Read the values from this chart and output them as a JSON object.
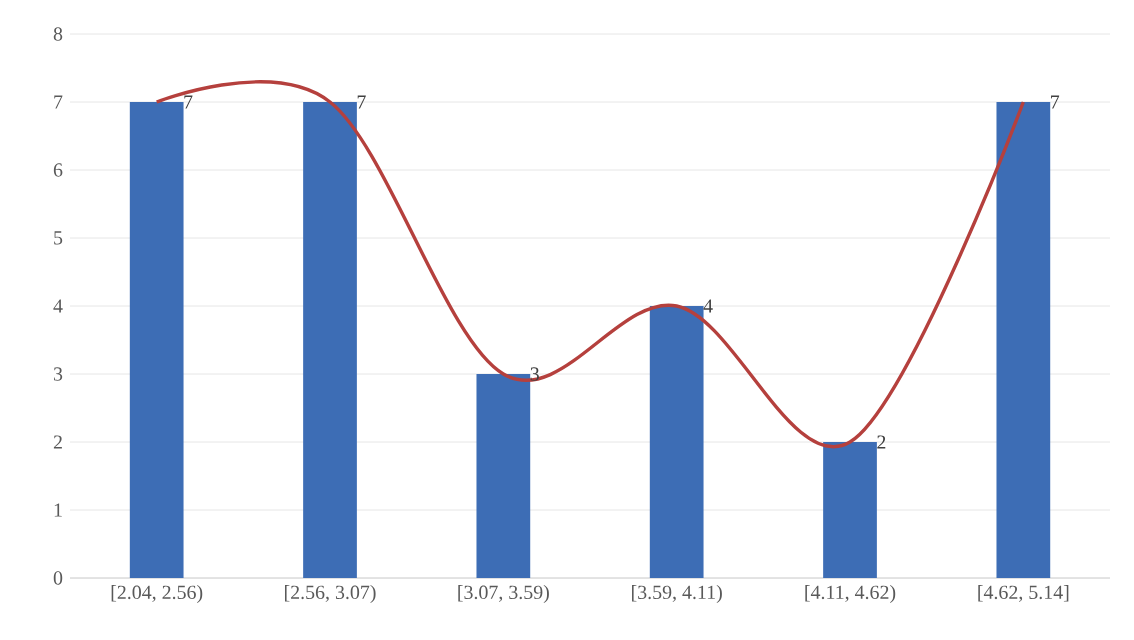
{
  "chart_data": {
    "type": "bar",
    "categories": [
      "[2.04, 2.56)",
      "[2.56, 3.07)",
      "[3.07, 3.59)",
      "[3.59, 4.11)",
      "[4.11, 4.62)",
      "[4.62, 5.14]"
    ],
    "series": [
      {
        "color": "#3d6db5",
        "values": [
          7,
          7,
          3,
          4,
          2,
          7
        ],
        "value_labels": [
          "7",
          "7",
          "3",
          "4",
          "2",
          "7"
        ]
      },
      {
        "type": "line",
        "color": "#b5403d",
        "values": [
          7,
          7,
          3,
          4,
          2,
          7
        ]
      }
    ],
    "ylim": [
      0,
      8
    ],
    "yticks": [
      0,
      1,
      2,
      3,
      4,
      5,
      6,
      7,
      8
    ],
    "grid": "y"
  }
}
